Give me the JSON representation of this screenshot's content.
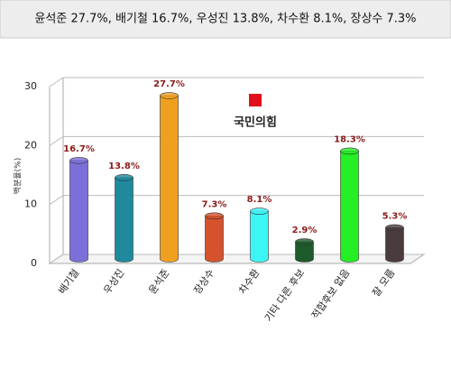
{
  "chart_data": {
    "type": "bar",
    "title": "윤석준 27.7%, 배기철 16.7%, 우성진 13.8%, 차수환 8.1%, 장상수 7.3%",
    "y_label": "백분율(%)",
    "annotations": [
      "국민의힘"
    ],
    "categories": [
      "배기철",
      "우성진",
      "윤석준",
      "장상수",
      "차수환",
      "기타 다른 후보",
      "적합후보 없음",
      "잘 모름"
    ],
    "values": [
      16.7,
      13.8,
      27.7,
      7.3,
      8.1,
      2.9,
      18.3,
      5.3
    ],
    "value_labels": [
      "16.7%",
      "13.8%",
      "27.7%",
      "7.3%",
      "8.1%",
      "2.9%",
      "18.3%",
      "5.3%"
    ],
    "colors": [
      "#7a70d8",
      "#1f8a9e",
      "#f0a020",
      "#d4522c",
      "#3cf6f6",
      "#1e5a2a",
      "#24ee24",
      "#4a3c3c"
    ],
    "ylim": [
      0,
      30
    ],
    "yticks": [
      0,
      10,
      20,
      30
    ],
    "grid": true
  }
}
